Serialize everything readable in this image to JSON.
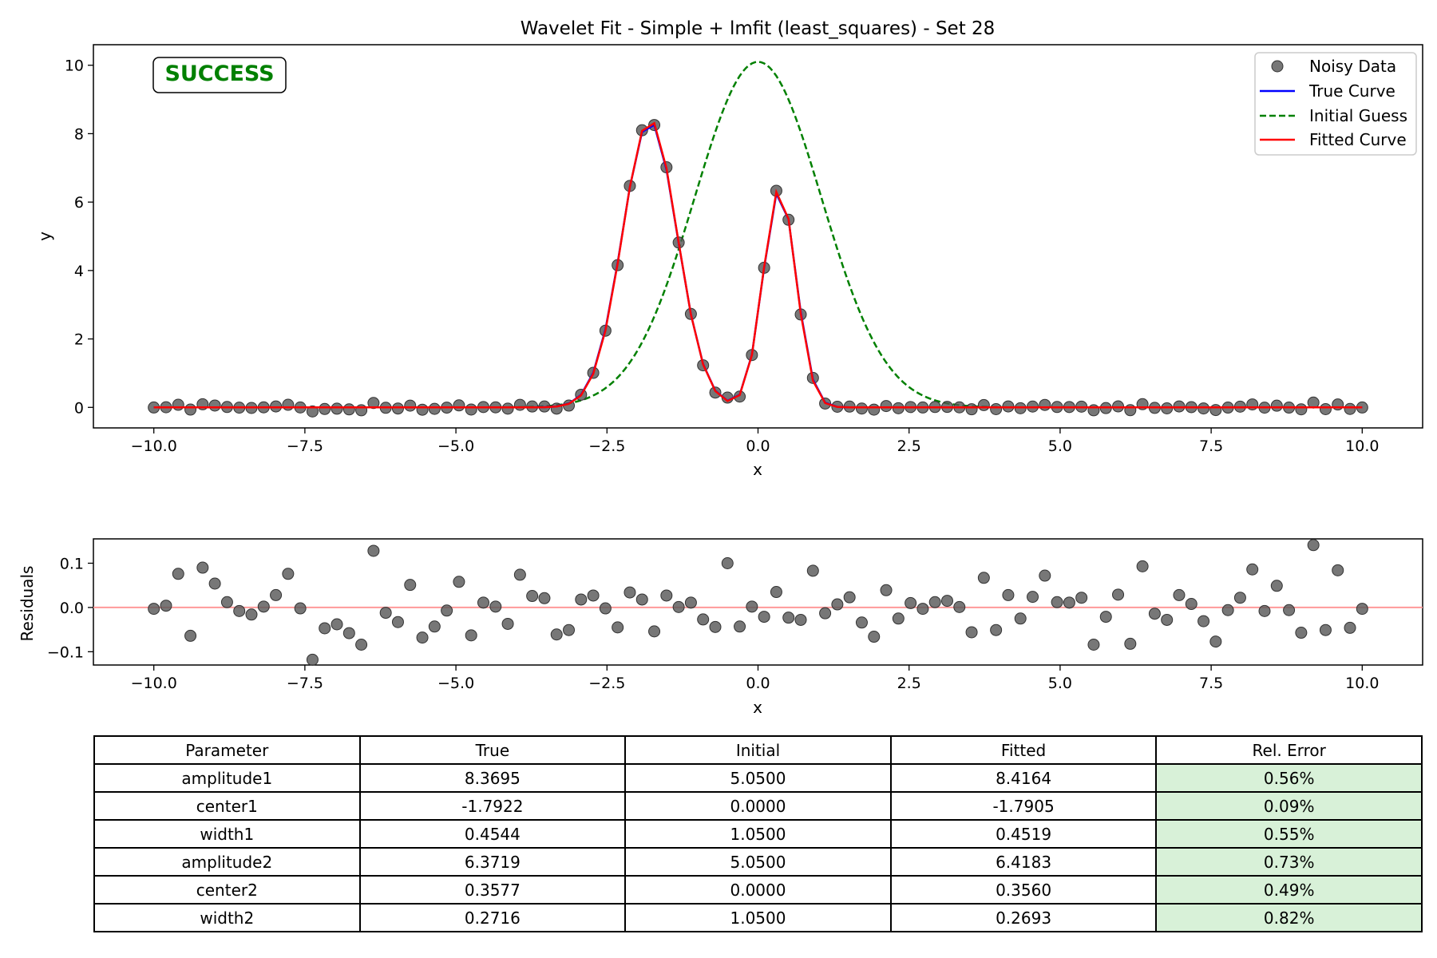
{
  "title": "Wavelet Fit - Simple + lmfit (least_squares) - Set 28",
  "status_badge": "SUCCESS",
  "colors": {
    "noisy": "#555555",
    "true": "#0000ff",
    "initial": "#008000",
    "fitted": "#ff0000",
    "badge": "#008000",
    "zero_line": "#ff9999",
    "rel_error_cell": "#d8f1d8"
  },
  "chart_data": [
    {
      "type": "line",
      "title": "Wavelet Fit - Simple + lmfit (least_squares) - Set 28",
      "xlabel": "x",
      "ylabel": "y",
      "xlim": [
        -11,
        11
      ],
      "ylim": [
        -0.6,
        10.6
      ],
      "xticks": [
        -10,
        -7.5,
        -5,
        -2.5,
        0,
        2.5,
        5,
        7.5,
        10
      ],
      "xtick_labels": [
        "−10.0",
        "−7.5",
        "−5.0",
        "−2.5",
        "0.0",
        "2.5",
        "5.0",
        "7.5",
        "10.0"
      ],
      "yticks": [
        0,
        2,
        4,
        6,
        8,
        10
      ],
      "ytick_labels": [
        "0",
        "2",
        "4",
        "6",
        "8",
        "10"
      ],
      "legend": {
        "position": "top-right",
        "entries": [
          "Noisy Data",
          "True Curve",
          "Initial Guess",
          "Fitted Curve"
        ]
      },
      "x": {
        "start": -10,
        "stop": 10,
        "count": 100
      },
      "true_params": {
        "amplitude1": 8.3695,
        "center1": -1.7922,
        "width1": 0.4544,
        "amplitude2": 6.3719,
        "center2": 0.3577,
        "width2": 0.2716
      },
      "initial_params": {
        "amplitude1": 5.05,
        "center1": 0.0,
        "width1": 1.05,
        "amplitude2": 5.05,
        "center2": 0.0,
        "width2": 1.05
      },
      "fitted_params": {
        "amplitude1": 8.4164,
        "center1": -1.7905,
        "width1": 0.4519,
        "amplitude2": 6.4183,
        "center2": 0.356,
        "width2": 0.2693
      },
      "series": [
        {
          "name": "Noisy Data",
          "style": "markers"
        },
        {
          "name": "True Curve",
          "style": "solid"
        },
        {
          "name": "Initial Guess",
          "style": "dashed"
        },
        {
          "name": "Fitted Curve",
          "style": "solid"
        }
      ]
    },
    {
      "type": "scatter",
      "xlabel": "x",
      "ylabel": "Residuals",
      "xlim": [
        -11,
        11
      ],
      "ylim": [
        -0.13,
        0.155
      ],
      "xticks": [
        -10,
        -7.5,
        -5,
        -2.5,
        0,
        2.5,
        5,
        7.5,
        10
      ],
      "xtick_labels": [
        "−10.0",
        "−7.5",
        "−5.0",
        "−2.5",
        "0.0",
        "2.5",
        "5.0",
        "7.5",
        "10.0"
      ],
      "yticks": [
        -0.1,
        0,
        0.1
      ],
      "ytick_labels": [
        "−0.1",
        "0.0",
        "0.1"
      ],
      "residuals": [
        -0.003,
        0.004,
        0.076,
        -0.064,
        0.09,
        0.054,
        0.012,
        -0.008,
        -0.016,
        0.002,
        0.028,
        0.076,
        -0.002,
        -0.118,
        -0.047,
        -0.038,
        -0.058,
        -0.084,
        0.128,
        -0.012,
        -0.033,
        0.051,
        -0.068,
        -0.043,
        -0.007,
        0.058,
        -0.063,
        0.011,
        0.002,
        -0.037,
        0.074,
        0.026,
        0.021,
        -0.061,
        -0.051,
        0.018,
        0.027,
        -0.002,
        -0.045,
        0.034,
        0.018,
        -0.054,
        0.027,
        0.001,
        0.011,
        -0.027,
        -0.044,
        0.1,
        -0.043,
        0.002,
        -0.021,
        0.035,
        -0.023,
        -0.028,
        0.083,
        -0.013,
        0.007,
        0.023,
        -0.034,
        -0.066,
        0.039,
        -0.025,
        0.01,
        -0.003,
        0.012,
        0.015,
        0.001,
        -0.056,
        0.067,
        -0.051,
        0.028,
        -0.025,
        0.024,
        0.072,
        0.012,
        0.011,
        0.022,
        -0.084,
        -0.021,
        0.029,
        -0.082,
        0.093,
        -0.014,
        -0.028,
        0.028,
        0.008,
        -0.031,
        -0.077,
        -0.006,
        0.022,
        0.086,
        -0.008,
        0.049,
        -0.006,
        -0.057,
        0.141,
        -0.051,
        0.084,
        -0.046,
        -0.003
      ]
    }
  ],
  "table": {
    "headers": [
      "Parameter",
      "True",
      "Initial",
      "Fitted",
      "Rel. Error"
    ],
    "rows": [
      [
        "amplitude1",
        "8.3695",
        "5.0500",
        "8.4164",
        "0.56%"
      ],
      [
        "center1",
        "-1.7922",
        "0.0000",
        "-1.7905",
        "0.09%"
      ],
      [
        "width1",
        "0.4544",
        "1.0500",
        "0.4519",
        "0.55%"
      ],
      [
        "amplitude2",
        "6.3719",
        "5.0500",
        "6.4183",
        "0.73%"
      ],
      [
        "center2",
        "0.3577",
        "0.0000",
        "0.3560",
        "0.49%"
      ],
      [
        "width2",
        "0.2716",
        "1.0500",
        "0.2693",
        "0.82%"
      ]
    ]
  }
}
